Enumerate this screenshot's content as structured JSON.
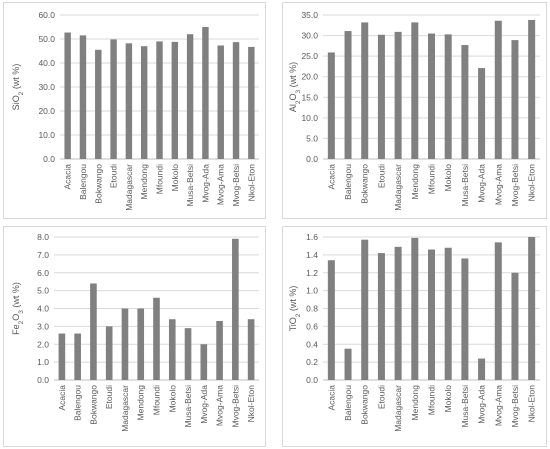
{
  "chart_data": [
    {
      "type": "bar",
      "ylabel_parts": [
        {
          "t": "SiO"
        },
        {
          "t": "2",
          "sub": true
        },
        {
          "t": " (wt %)"
        }
      ],
      "categories": [
        "Acacia",
        "Balengou",
        "Bokwango",
        "Etoudi",
        "Madagascar",
        "Mendong",
        "Mfoundi",
        "Mokolo",
        "Musa-Betsi",
        "Mvog-Ada",
        "Mvog-Ama",
        "Mvog-Betsi",
        "Nkol-Eton"
      ],
      "values": [
        52.7,
        51.5,
        45.5,
        49.8,
        48.2,
        47.0,
        49.0,
        48.8,
        52.0,
        55.0,
        47.3,
        48.7,
        46.7
      ],
      "ylim": [
        0,
        60
      ],
      "yticks": [
        "0.0",
        "10.0",
        "20.0",
        "30.0",
        "40.0",
        "50.0",
        "60.0"
      ],
      "bar_color": "#808080",
      "grid": true
    },
    {
      "type": "bar",
      "ylabel_parts": [
        {
          "t": "Al"
        },
        {
          "t": "2",
          "sub": true
        },
        {
          "t": "O"
        },
        {
          "t": "3",
          "sub": true
        },
        {
          "t": " (wt %)"
        }
      ],
      "categories": [
        "Acacia",
        "Balengou",
        "Bokwango",
        "Etoudi",
        "Madagascar",
        "Mendong",
        "Mfoundi",
        "Mokolo",
        "Musa-Betsi",
        "Mvog-Ada",
        "Mvog-Ama",
        "Mvog-Betsi",
        "Nkol-Eton"
      ],
      "values": [
        25.9,
        31.1,
        33.2,
        30.2,
        30.9,
        33.2,
        30.5,
        30.3,
        27.7,
        22.1,
        33.6,
        28.9,
        33.8
      ],
      "ylim": [
        0,
        35
      ],
      "yticks": [
        "0.0",
        "5.0",
        "10.0",
        "15.0",
        "20.0",
        "25.0",
        "30.0",
        "35.0"
      ],
      "bar_color": "#808080",
      "grid": true
    },
    {
      "type": "bar",
      "ylabel_parts": [
        {
          "t": "Fe"
        },
        {
          "t": "2",
          "sub": true
        },
        {
          "t": "O"
        },
        {
          "t": "3",
          "sub": true
        },
        {
          "t": " (wt %)"
        }
      ],
      "categories": [
        "Acacia",
        "Balengou",
        "Bokwango",
        "Etoudi",
        "Madagascar",
        "Mendong",
        "Mfoundi",
        "Mokolo",
        "Musa-Betsi",
        "Mvog-Ada",
        "Mvog-Ama",
        "Mvog-Betsi",
        "Nkol-Eton"
      ],
      "values": [
        2.6,
        2.6,
        5.4,
        3.0,
        4.0,
        4.0,
        4.6,
        3.4,
        2.9,
        2.0,
        3.3,
        7.9,
        3.4
      ],
      "ylim": [
        0,
        8
      ],
      "yticks": [
        "0.0",
        "1.0",
        "2.0",
        "3.0",
        "4.0",
        "5.0",
        "6.0",
        "7.0",
        "8.0"
      ],
      "bar_color": "#808080",
      "grid": true
    },
    {
      "type": "bar",
      "ylabel_parts": [
        {
          "t": "TiO"
        },
        {
          "t": "2",
          "sub": true
        },
        {
          "t": " (wt %)"
        }
      ],
      "categories": [
        "Acacia",
        "Balengou",
        "Bokwango",
        "Etoudi",
        "Madagascar",
        "Mendong",
        "Mfoundi",
        "Mokolo",
        "Musa-Betsi",
        "Mvog-Ada",
        "Mvog-Ama",
        "Mvog-Betsi",
        "Nkol-Eton"
      ],
      "values": [
        1.34,
        0.35,
        1.57,
        1.42,
        1.49,
        1.59,
        1.46,
        1.48,
        1.36,
        0.24,
        1.54,
        1.2,
        1.6
      ],
      "ylim": [
        0,
        1.6
      ],
      "yticks": [
        "0.0",
        "0.2",
        "0.4",
        "0.6",
        "0.8",
        "1.0",
        "1.2",
        "1.4",
        "1.6"
      ],
      "bar_color": "#808080",
      "grid": true
    }
  ]
}
